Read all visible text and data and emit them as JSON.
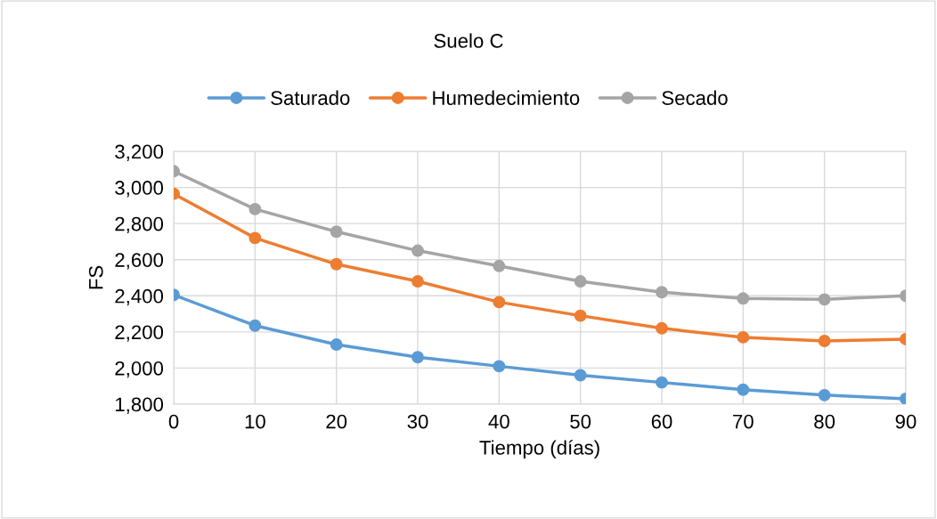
{
  "chart_data": {
    "type": "line",
    "title": "Suelo C",
    "xlabel": "Tiempo (días)",
    "ylabel": "FS",
    "x": [
      0,
      10,
      20,
      30,
      40,
      50,
      60,
      70,
      80,
      90
    ],
    "series": [
      {
        "name": "Saturado",
        "color": "#5b9bd5",
        "values": [
          2405,
          2235,
          2130,
          2060,
          2010,
          1960,
          1920,
          1880,
          1850,
          1830
        ]
      },
      {
        "name": "Humedecimiento",
        "color": "#ed7d31",
        "values": [
          2965,
          2720,
          2575,
          2480,
          2365,
          2290,
          2220,
          2170,
          2150,
          2160
        ]
      },
      {
        "name": "Secado",
        "color": "#a5a5a5",
        "values": [
          3090,
          2880,
          2755,
          2650,
          2565,
          2480,
          2420,
          2385,
          2380,
          2400
        ]
      }
    ],
    "xlim": [
      0,
      90
    ],
    "xticks": [
      0,
      10,
      20,
      30,
      40,
      50,
      60,
      70,
      80,
      90
    ],
    "ylim": [
      1800,
      3200
    ],
    "yticks": [
      {
        "value": 1800,
        "label": "1,800"
      },
      {
        "value": 2000,
        "label": "2,000"
      },
      {
        "value": 2200,
        "label": "2,200"
      },
      {
        "value": 2400,
        "label": "2,400"
      },
      {
        "value": 2600,
        "label": "2,600"
      },
      {
        "value": 2800,
        "label": "2,800"
      },
      {
        "value": 3000,
        "label": "3,000"
      },
      {
        "value": 3200,
        "label": "3,200"
      }
    ],
    "grid": true,
    "legend": "top",
    "marker": "circle",
    "line_style": "solid"
  }
}
